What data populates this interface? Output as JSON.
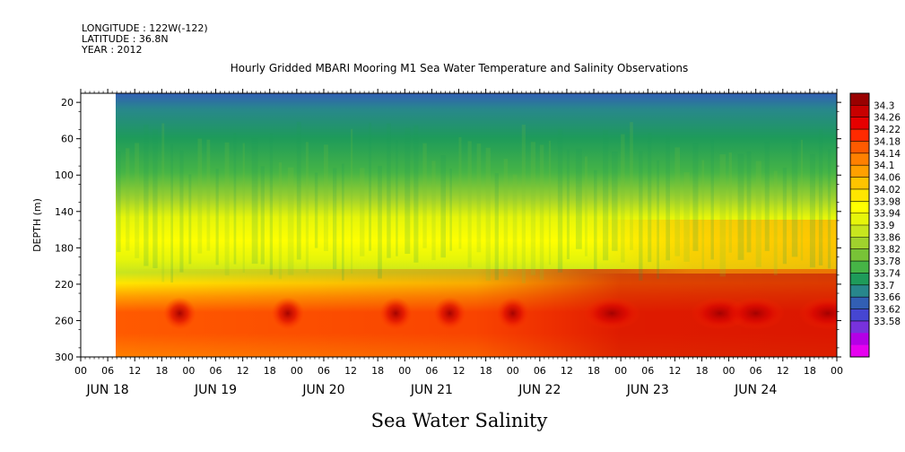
{
  "meta": {
    "longitude": "LONGITUDE : 122W(-122)",
    "latitude": "LATITUDE : 36.8N",
    "year": "YEAR : 2012"
  },
  "chart_data": {
    "type": "heatmap",
    "title": "Hourly Gridded MBARI Mooring M1 Sea Water Temperature and Salinity Observations",
    "xlabel": "Sea Water Salinity",
    "ylabel": "DEPTH (m)",
    "x_hour_ticks": [
      "00",
      "06",
      "12",
      "18",
      "00",
      "06",
      "12",
      "18",
      "00",
      "06",
      "12",
      "18",
      "00",
      "06",
      "12",
      "18",
      "00",
      "06",
      "12",
      "18",
      "00",
      "06",
      "12",
      "18",
      "00",
      "06",
      "12",
      "18",
      "00"
    ],
    "x_day_labels": [
      "JUN 18",
      "JUN 19",
      "JUN 20",
      "JUN 21",
      "JUN 22",
      "JUN 23",
      "JUN 24"
    ],
    "x_range_hours": [
      0,
      168
    ],
    "data_start_hour": 8,
    "y_ticks": [
      20,
      60,
      100,
      140,
      180,
      220,
      260,
      300
    ],
    "y_range": [
      10,
      300
    ],
    "y_inverted": true,
    "colorbar_levels": [
      "34.3",
      "34.26",
      "34.22",
      "34.18",
      "34.14",
      "34.1",
      "34.06",
      "34.02",
      "33.98",
      "33.94",
      "33.9",
      "33.86",
      "33.82",
      "33.78",
      "33.74",
      "33.7",
      "33.66",
      "33.62",
      "33.58"
    ],
    "colorbar_colors": [
      "#990000",
      "#c80000",
      "#e60000",
      "#ff2a00",
      "#ff5a00",
      "#ff8000",
      "#ffa000",
      "#ffc400",
      "#ffe600",
      "#ffff00",
      "#e6f50a",
      "#c8e61e",
      "#a0d22d",
      "#78c337",
      "#46b446",
      "#1e9b5a",
      "#28878c",
      "#325fb4",
      "#4646d2",
      "#7832dc",
      "#b400e6",
      "#e600f0"
    ],
    "depth_profile": [
      {
        "depth": 10,
        "salinity": 33.72
      },
      {
        "depth": 20,
        "salinity": 33.73
      },
      {
        "depth": 40,
        "salinity": 33.78
      },
      {
        "depth": 60,
        "salinity": 33.83
      },
      {
        "depth": 80,
        "salinity": 33.86
      },
      {
        "depth": 100,
        "salinity": 33.88
      },
      {
        "depth": 120,
        "salinity": 33.95
      },
      {
        "depth": 140,
        "salinity": 34.0
      },
      {
        "depth": 160,
        "salinity": 34.03
      },
      {
        "depth": 180,
        "salinity": 34.03
      },
      {
        "depth": 200,
        "salinity": 34.05
      },
      {
        "depth": 220,
        "salinity": 34.12
      },
      {
        "depth": 240,
        "salinity": 34.18
      },
      {
        "depth": 260,
        "salinity": 34.2
      },
      {
        "depth": 280,
        "salinity": 34.18
      },
      {
        "depth": 300,
        "salinity": 34.18
      }
    ],
    "deep_salinity_by_day": [
      {
        "hour": 8,
        "salinity": 34.17
      },
      {
        "hour": 24,
        "salinity": 34.2
      },
      {
        "hour": 48,
        "salinity": 34.19
      },
      {
        "hour": 72,
        "salinity": 34.2
      },
      {
        "hour": 96,
        "salinity": 34.22
      },
      {
        "hour": 120,
        "salinity": 34.25
      },
      {
        "hour": 144,
        "salinity": 34.25
      },
      {
        "hour": 168,
        "salinity": 34.24
      }
    ]
  }
}
